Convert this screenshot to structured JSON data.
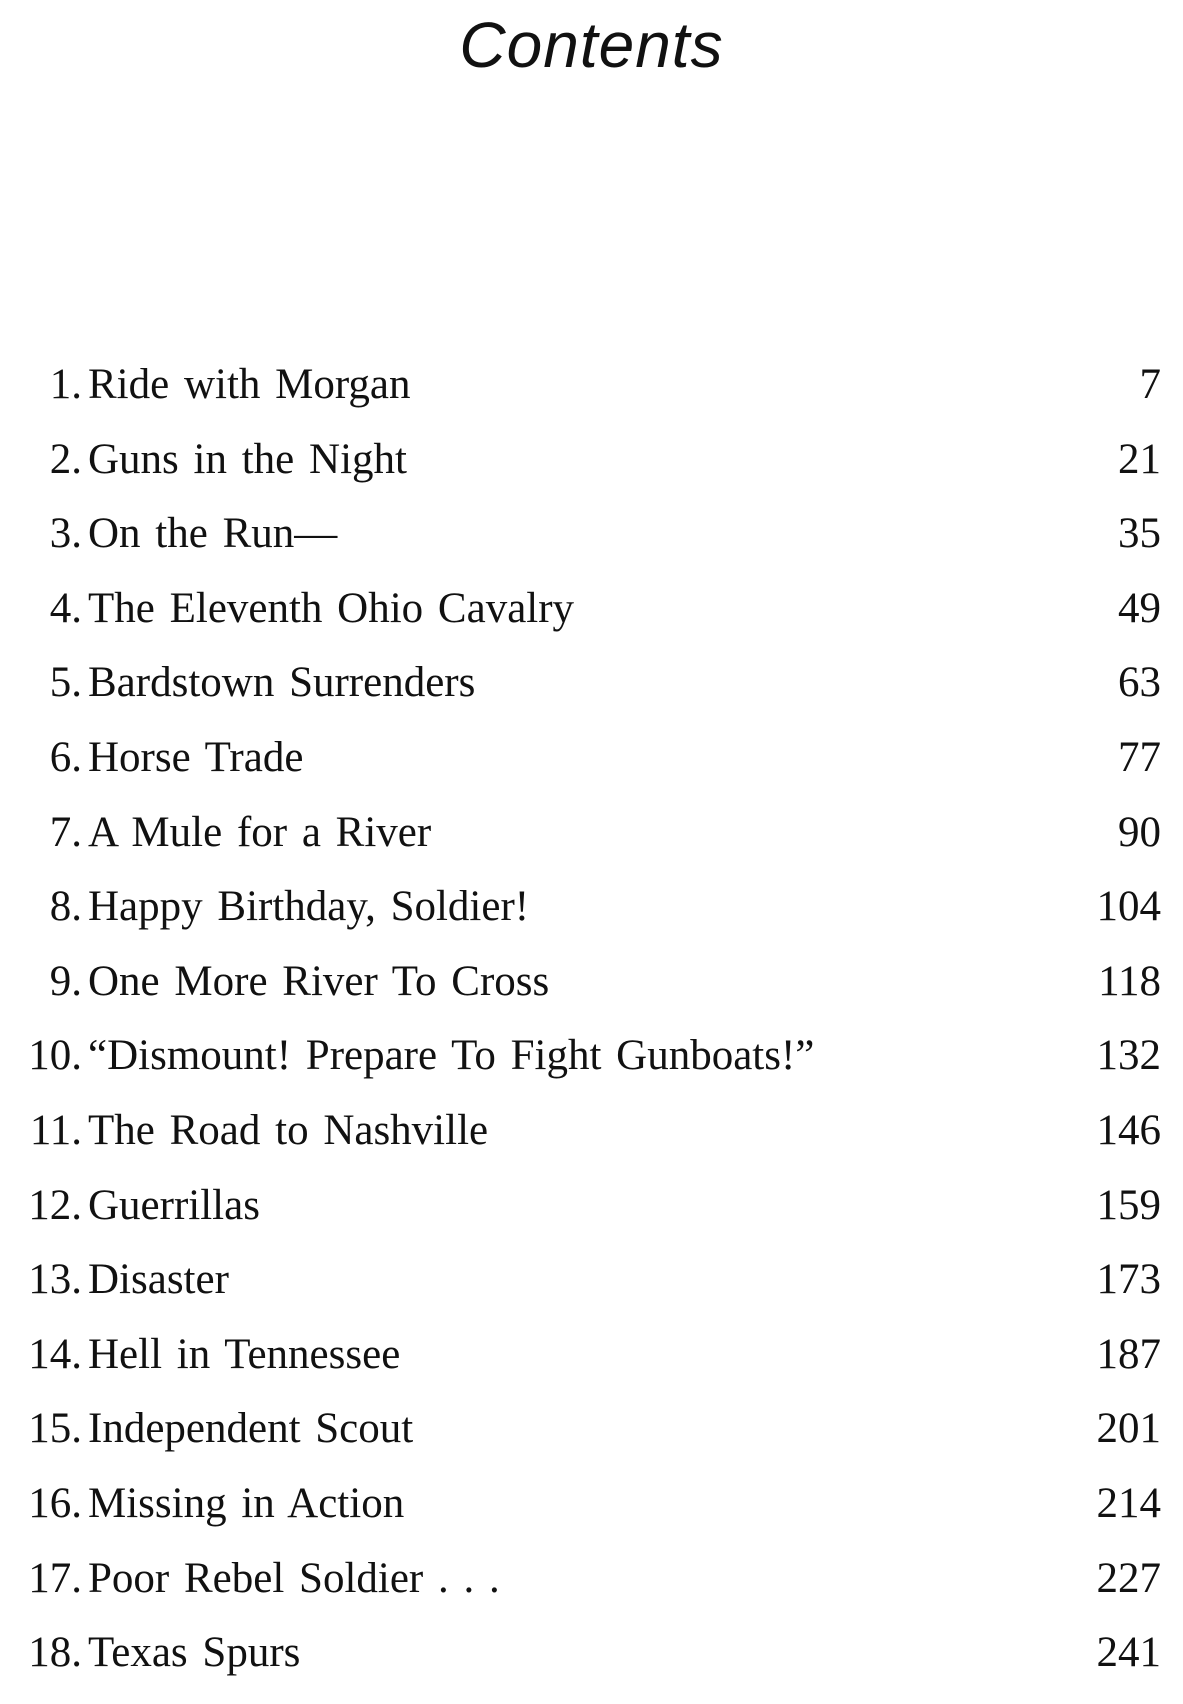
{
  "title": "Contents",
  "entries": [
    {
      "num": "1.",
      "title": "Ride with Morgan",
      "page": "7"
    },
    {
      "num": "2.",
      "title": "Guns in the Night",
      "page": "21"
    },
    {
      "num": "3.",
      "title": "On the Run—",
      "page": "35"
    },
    {
      "num": "4.",
      "title": "The Eleventh Ohio Cavalry",
      "page": "49"
    },
    {
      "num": "5.",
      "title": "Bardstown Surrenders",
      "page": "63"
    },
    {
      "num": "6.",
      "title": "Horse Trade",
      "page": "77"
    },
    {
      "num": "7.",
      "title": "A Mule for a River",
      "page": "90"
    },
    {
      "num": "8.",
      "title": "Happy Birthday, Soldier!",
      "page": "104"
    },
    {
      "num": "9.",
      "title": "One More River To Cross",
      "page": "118"
    },
    {
      "num": "10.",
      "title": "“Dismount! Prepare To Fight Gunboats!”",
      "page": "132"
    },
    {
      "num": "11.",
      "title": "The Road to Nashville",
      "page": "146"
    },
    {
      "num": "12.",
      "title": "Guerrillas",
      "page": "159"
    },
    {
      "num": "13.",
      "title": "Disaster",
      "page": "173"
    },
    {
      "num": "14.",
      "title": "Hell in Tennessee",
      "page": "187"
    },
    {
      "num": "15.",
      "title": "Independent Scout",
      "page": "201"
    },
    {
      "num": "16.",
      "title": "Missing in Action",
      "page": "214"
    },
    {
      "num": "17.",
      "title": "Poor Rebel Soldier . . .",
      "page": "227"
    },
    {
      "num": "18.",
      "title": "Texas Spurs",
      "page": "241"
    }
  ]
}
